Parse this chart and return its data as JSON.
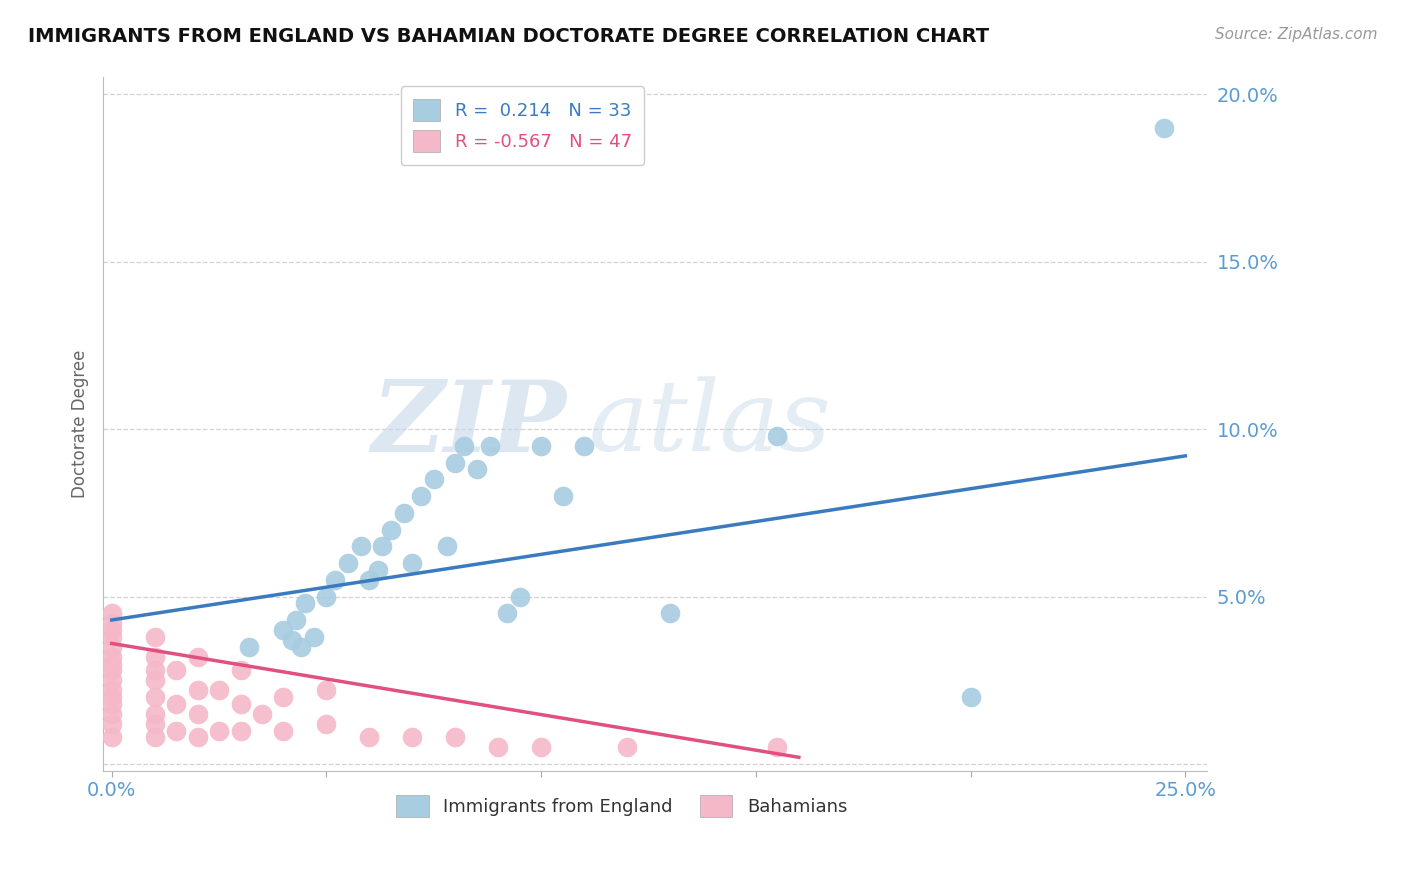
{
  "title": "IMMIGRANTS FROM ENGLAND VS BAHAMIAN DOCTORATE DEGREE CORRELATION CHART",
  "source_text": "Source: ZipAtlas.com",
  "ylabel": "Doctorate Degree",
  "xlim": [
    -0.002,
    0.255
  ],
  "ylim": [
    -0.002,
    0.205
  ],
  "xticks": [
    0.0,
    0.05,
    0.1,
    0.15,
    0.2,
    0.25
  ],
  "yticks": [
    0.0,
    0.05,
    0.1,
    0.15,
    0.2
  ],
  "xticklabels": [
    "0.0%",
    "",
    "",
    "",
    "",
    "25.0%"
  ],
  "yticklabels": [
    "",
    "5.0%",
    "10.0%",
    "15.0%",
    "20.0%"
  ],
  "legend_r_blue": "0.214",
  "legend_n_blue": "33",
  "legend_r_pink": "-0.567",
  "legend_n_pink": "47",
  "blue_color": "#a8cce0",
  "pink_color": "#f4b8c8",
  "trend_blue": "#3a7bbf",
  "trend_pink": "#e05080",
  "watermark_zip": "ZIP",
  "watermark_atlas": "atlas",
  "blue_scatter_x": [
    0.032,
    0.04,
    0.042,
    0.043,
    0.044,
    0.045,
    0.047,
    0.05,
    0.052,
    0.055,
    0.058,
    0.06,
    0.062,
    0.063,
    0.065,
    0.068,
    0.07,
    0.072,
    0.075,
    0.078,
    0.08,
    0.082,
    0.085,
    0.088,
    0.092,
    0.095,
    0.1,
    0.105,
    0.11,
    0.13,
    0.155,
    0.2,
    0.245
  ],
  "blue_scatter_y": [
    0.035,
    0.04,
    0.037,
    0.043,
    0.035,
    0.048,
    0.038,
    0.05,
    0.055,
    0.06,
    0.065,
    0.055,
    0.058,
    0.065,
    0.07,
    0.075,
    0.06,
    0.08,
    0.085,
    0.065,
    0.09,
    0.095,
    0.088,
    0.095,
    0.045,
    0.05,
    0.095,
    0.08,
    0.095,
    0.045,
    0.098,
    0.02,
    0.19
  ],
  "pink_scatter_x": [
    0.0,
    0.0,
    0.0,
    0.0,
    0.0,
    0.0,
    0.0,
    0.0,
    0.0,
    0.0,
    0.0,
    0.0,
    0.0,
    0.0,
    0.0,
    0.01,
    0.01,
    0.01,
    0.01,
    0.01,
    0.01,
    0.01,
    0.01,
    0.015,
    0.015,
    0.015,
    0.02,
    0.02,
    0.02,
    0.02,
    0.025,
    0.025,
    0.03,
    0.03,
    0.03,
    0.035,
    0.04,
    0.04,
    0.05,
    0.05,
    0.06,
    0.07,
    0.08,
    0.09,
    0.1,
    0.12,
    0.155
  ],
  "pink_scatter_y": [
    0.008,
    0.012,
    0.015,
    0.018,
    0.02,
    0.022,
    0.025,
    0.028,
    0.03,
    0.032,
    0.035,
    0.038,
    0.04,
    0.042,
    0.045,
    0.008,
    0.012,
    0.015,
    0.02,
    0.025,
    0.028,
    0.032,
    0.038,
    0.01,
    0.018,
    0.028,
    0.008,
    0.015,
    0.022,
    0.032,
    0.01,
    0.022,
    0.01,
    0.018,
    0.028,
    0.015,
    0.01,
    0.02,
    0.012,
    0.022,
    0.008,
    0.008,
    0.008,
    0.005,
    0.005,
    0.005,
    0.005
  ],
  "blue_trend_x": [
    0.0,
    0.25
  ],
  "blue_trend_y": [
    0.043,
    0.092
  ],
  "pink_trend_x": [
    0.0,
    0.16
  ],
  "pink_trend_y": [
    0.036,
    0.002
  ]
}
